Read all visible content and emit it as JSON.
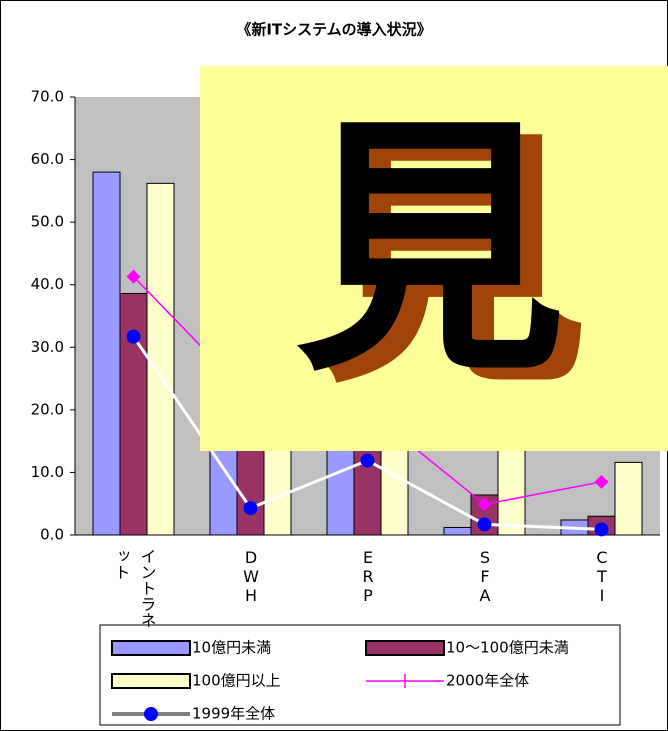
{
  "chart_data": {
    "type": "bar",
    "title": "《新ITシステムの導入状況》",
    "categories": [
      "イントラネット",
      "DWH",
      "ERP",
      "SFA",
      "CTI"
    ],
    "series": [
      {
        "name": "10億円未満",
        "color": "#9999ff",
        "type": "bar",
        "values": [
          58.0,
          20.0,
          18.0,
          1.2,
          2.4
        ]
      },
      {
        "name": "10～100億円未満",
        "color": "#993366",
        "type": "bar",
        "values": [
          38.6,
          16.0,
          14.0,
          6.4,
          3.0
        ]
      },
      {
        "name": "100億円以上",
        "color": "#ffffcc",
        "type": "bar",
        "values": [
          56.2,
          18.0,
          16.0,
          17.0,
          11.6
        ]
      },
      {
        "name": "2000年全体",
        "color": "#ff00ff",
        "type": "line",
        "values": [
          41.3,
          22.0,
          20.0,
          4.9,
          8.5
        ]
      },
      {
        "name": "1999年全体",
        "color": "#ffffff",
        "marker_color": "#0000ff",
        "type": "line",
        "values": [
          31.7,
          4.3,
          11.9,
          1.7,
          0.9
        ]
      }
    ],
    "ylim": [
      0,
      70
    ],
    "yticks": [
      {
        "value": 0,
        "label": "0.0"
      },
      {
        "value": 10,
        "label": "10.0"
      },
      {
        "value": 20,
        "label": "20.0"
      },
      {
        "value": 30,
        "label": "30.0"
      },
      {
        "value": 40,
        "label": "40.0"
      },
      {
        "value": 50,
        "label": "50.0"
      },
      {
        "value": 60,
        "label": "60.0"
      },
      {
        "value": 70,
        "label": "70.0"
      }
    ],
    "grid": false,
    "legend": "bottom",
    "overlay_glyph": "見"
  }
}
